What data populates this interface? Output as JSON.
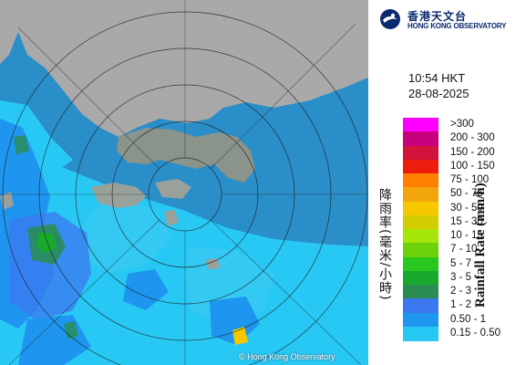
{
  "organization": {
    "name_zh": "香港天文台",
    "name_en": "HONG KONG OBSERVATORY",
    "brand_color": "#0a2b6e"
  },
  "radar": {
    "time": "10:54 HKT",
    "date": "28-08-2025",
    "copyright": "© Hong Kong Observatory",
    "land_color": "#a9a9a9",
    "sea_color": "#2a8ec9"
  },
  "legend": {
    "title_zh": "降雨率(毫米/小時)",
    "title_en": "Rainfall Rate (mm/h)",
    "items": [
      {
        "label": ">300",
        "color": "#ff00ff"
      },
      {
        "label": "200 - 300",
        "color": "#c8007d"
      },
      {
        "label": "150 - 200",
        "color": "#d2143c"
      },
      {
        "label": "100 - 150",
        "color": "#ee1c0c"
      },
      {
        "label": "75 - 100",
        "color": "#ff8000"
      },
      {
        "label": "50 - 75",
        "color": "#f2a40c"
      },
      {
        "label": "30 - 50",
        "color": "#f7c800"
      },
      {
        "label": "15 - 30",
        "color": "#d2cd00"
      },
      {
        "label": "10 - 15",
        "color": "#a6e60a"
      },
      {
        "label": "7 - 10",
        "color": "#6ed20a"
      },
      {
        "label": "5 - 7",
        "color": "#28c81e"
      },
      {
        "label": "3 - 5",
        "color": "#19aa2d"
      },
      {
        "label": "2 - 3",
        "color": "#2a8c50"
      },
      {
        "label": "1 - 2",
        "color": "#3c78f0"
      },
      {
        "label": "0.50 - 1",
        "color": "#1e96f0"
      },
      {
        "label": "0.15 - 0.50",
        "color": "#28c8f5"
      }
    ]
  }
}
